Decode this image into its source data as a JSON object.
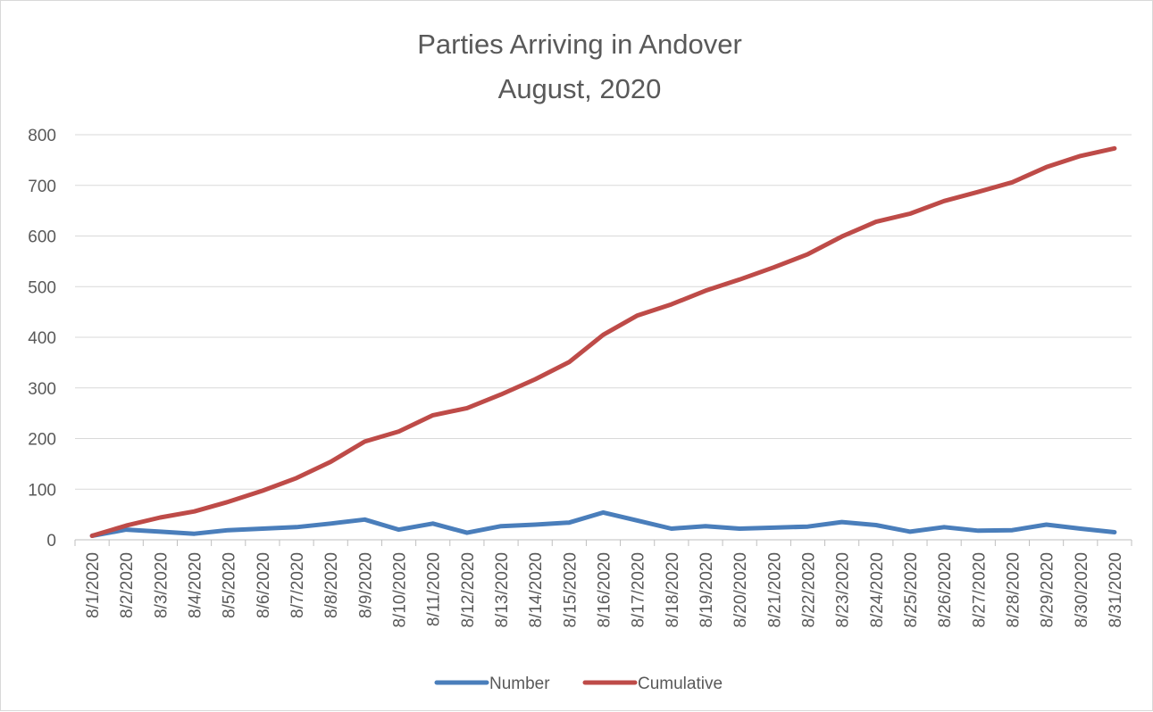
{
  "chart_data": {
    "type": "line",
    "title": "Parties Arriving in Andover",
    "subtitle": "August, 2020",
    "xlabel": "",
    "ylabel": "",
    "ylim": [
      0,
      800
    ],
    "yticks": [
      "0",
      "100",
      "200",
      "300",
      "400",
      "500",
      "600",
      "700",
      "800"
    ],
    "grid": true,
    "legend_position": "bottom",
    "categories": [
      "8/1/2020",
      "8/2/2020",
      "8/3/2020",
      "8/4/2020",
      "8/5/2020",
      "8/6/2020",
      "8/7/2020",
      "8/8/2020",
      "8/9/2020",
      "8/10/2020",
      "8/11/2020",
      "8/12/2020",
      "8/13/2020",
      "8/14/2020",
      "8/15/2020",
      "8/16/2020",
      "8/17/2020",
      "8/18/2020",
      "8/19/2020",
      "8/20/2020",
      "8/21/2020",
      "8/22/2020",
      "8/23/2020",
      "8/24/2020",
      "8/25/2020",
      "8/26/2020",
      "8/27/2020",
      "8/28/2020",
      "8/29/2020",
      "8/30/2020",
      "8/31/2020"
    ],
    "series": [
      {
        "name": "Number",
        "color": "#4a7ebb",
        "values": [
          8,
          20,
          16,
          12,
          19,
          22,
          25,
          32,
          40,
          20,
          32,
          14,
          27,
          30,
          34,
          54,
          38,
          22,
          27,
          22,
          24,
          26,
          35,
          29,
          16,
          25,
          18,
          19,
          30,
          22,
          15
        ]
      },
      {
        "name": "Cumulative",
        "color": "#be4b48",
        "values": [
          8,
          28,
          44,
          56,
          75,
          97,
          122,
          154,
          194,
          214,
          246,
          260,
          287,
          317,
          351,
          405,
          443,
          465,
          492,
          514,
          538,
          564,
          599,
          628,
          644,
          669,
          687,
          706,
          736,
          758,
          773
        ]
      }
    ]
  }
}
